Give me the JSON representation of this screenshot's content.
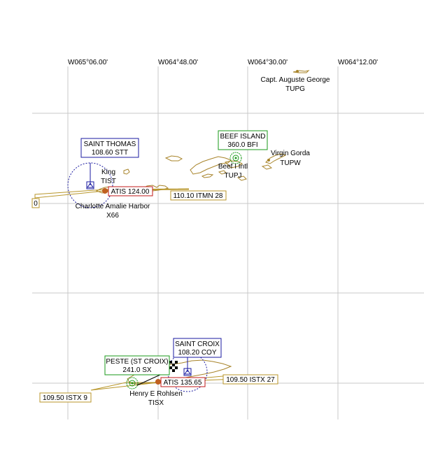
{
  "map": {
    "longitude_labels": [
      "W065°06.00'",
      "W064°48.00'",
      "W064°30.00'",
      "W064°12.00'"
    ],
    "airports": [
      {
        "id": "capt-auguste-george",
        "name": "Capt. Auguste George",
        "code": "TUPG"
      },
      {
        "id": "virgin-gorda",
        "name": "Virgin Gorda",
        "code": "TUPW"
      },
      {
        "id": "beef-island-intl",
        "name": "Beef I Intl",
        "code": "TUPJ"
      },
      {
        "id": "king",
        "name": "King",
        "code": "TIST"
      },
      {
        "id": "charlotte-amalie-harbor",
        "name": "Charlotte Amalie Harbor",
        "code": "X66"
      },
      {
        "id": "henry-e-rohlsen",
        "name": "Henry E Rohlsen",
        "code": "TISX"
      }
    ],
    "navaids": [
      {
        "id": "saint-thomas",
        "type": "VOR",
        "name": "SAINT THOMAS",
        "freq": "108.60 STT"
      },
      {
        "id": "beef-island",
        "type": "NDB",
        "name": "BEEF ISLAND",
        "freq": "360.0 BFI"
      },
      {
        "id": "saint-croix",
        "type": "VOR",
        "name": "SAINT CROIX",
        "freq": "108.20 COY"
      },
      {
        "id": "peste",
        "type": "NDB",
        "name": "PESTE (ST CROIX)",
        "freq": "241.0 SX"
      }
    ],
    "atis": [
      {
        "id": "king",
        "label": "ATIS 124.00"
      },
      {
        "id": "henry-e-rohlsen",
        "label": "ATIS 135.65"
      }
    ],
    "localizers": [
      {
        "id": "itmn-28",
        "label": "110.10 ITMN 28"
      },
      {
        "id": "stt-west",
        "label": "0"
      },
      {
        "id": "istx-9",
        "label": "109.50 ISTX 9"
      },
      {
        "id": "istx-27",
        "label": "109.50 ISTX 27"
      }
    ]
  },
  "colors": {
    "navaid": "#1a1aa0",
    "ndb": "#1a9a1a",
    "localizer": "#b8962a",
    "atis": "#c01818",
    "coastline": "#a8842a",
    "grid": "#c8c8c8"
  }
}
